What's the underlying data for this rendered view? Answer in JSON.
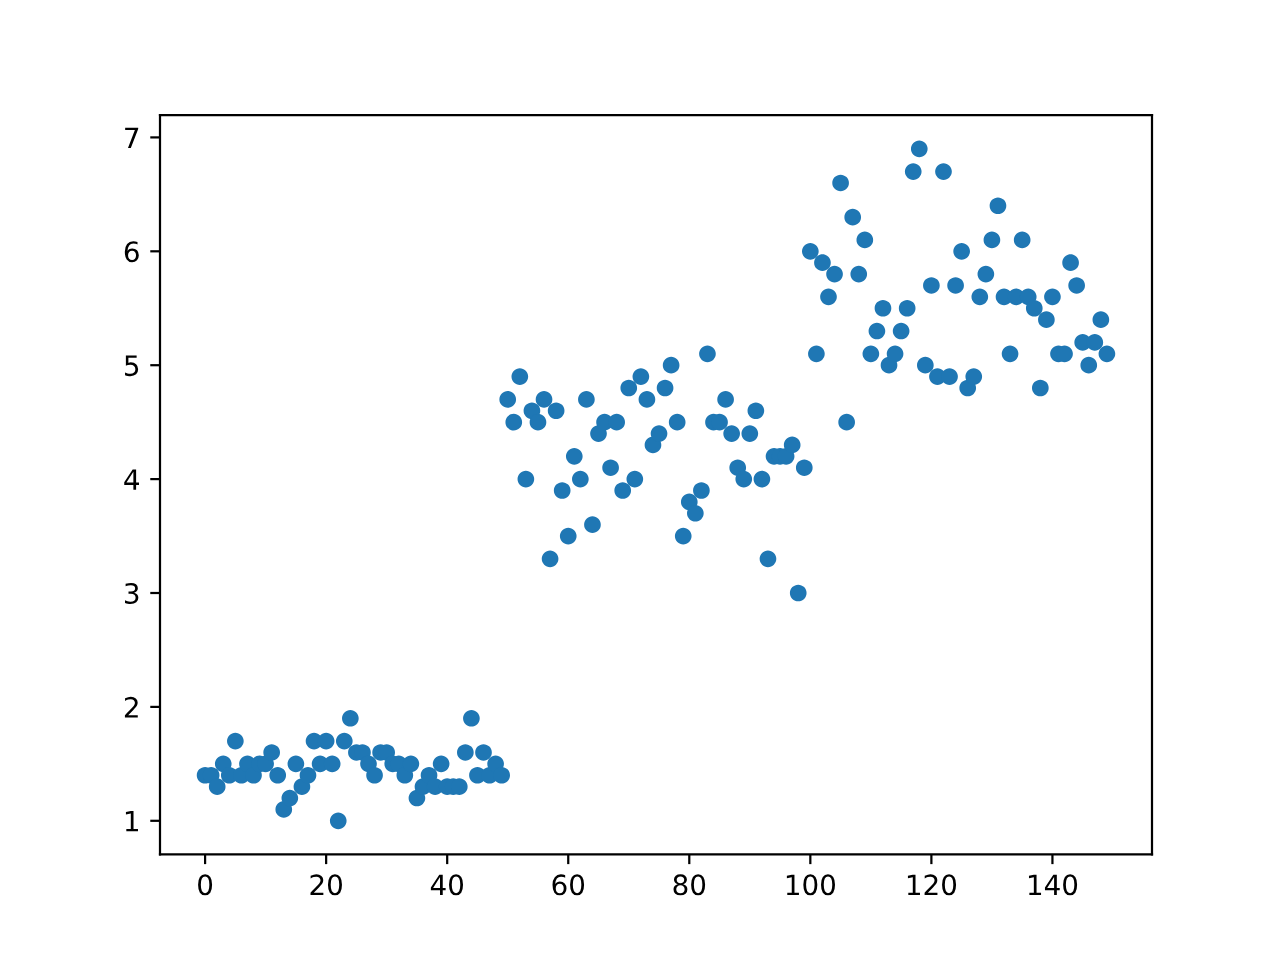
{
  "chart_data": {
    "type": "scatter",
    "x": [
      0,
      1,
      2,
      3,
      4,
      5,
      6,
      7,
      8,
      9,
      10,
      11,
      12,
      13,
      14,
      15,
      16,
      17,
      18,
      19,
      20,
      21,
      22,
      23,
      24,
      25,
      26,
      27,
      28,
      29,
      30,
      31,
      32,
      33,
      34,
      35,
      36,
      37,
      38,
      39,
      40,
      41,
      42,
      43,
      44,
      45,
      46,
      47,
      48,
      49,
      50,
      51,
      52,
      53,
      54,
      55,
      56,
      57,
      58,
      59,
      60,
      61,
      62,
      63,
      64,
      65,
      66,
      67,
      68,
      69,
      70,
      71,
      72,
      73,
      74,
      75,
      76,
      77,
      78,
      79,
      80,
      81,
      82,
      83,
      84,
      85,
      86,
      87,
      88,
      89,
      90,
      91,
      92,
      93,
      94,
      95,
      96,
      97,
      98,
      99,
      100,
      101,
      102,
      103,
      104,
      105,
      106,
      107,
      108,
      109,
      110,
      111,
      112,
      113,
      114,
      115,
      116,
      117,
      118,
      119,
      120,
      121,
      122,
      123,
      124,
      125,
      126,
      127,
      128,
      129,
      130,
      131,
      132,
      133,
      134,
      135,
      136,
      137,
      138,
      139,
      140,
      141,
      142,
      143,
      144,
      145,
      146,
      147,
      148,
      149
    ],
    "series": [
      {
        "color": "#1f77b4",
        "values": [
          1.4,
          1.4,
          1.3,
          1.5,
          1.4,
          1.7,
          1.4,
          1.5,
          1.4,
          1.5,
          1.5,
          1.6,
          1.4,
          1.1,
          1.2,
          1.5,
          1.3,
          1.4,
          1.7,
          1.5,
          1.7,
          1.5,
          1.0,
          1.7,
          1.9,
          1.6,
          1.6,
          1.5,
          1.4,
          1.6,
          1.6,
          1.5,
          1.5,
          1.4,
          1.5,
          1.2,
          1.3,
          1.4,
          1.3,
          1.5,
          1.3,
          1.3,
          1.3,
          1.6,
          1.9,
          1.4,
          1.6,
          1.4,
          1.5,
          1.4,
          4.7,
          4.5,
          4.9,
          4.0,
          4.6,
          4.5,
          4.7,
          3.3,
          4.6,
          3.9,
          3.5,
          4.2,
          4.0,
          4.7,
          3.6,
          4.4,
          4.5,
          4.1,
          4.5,
          3.9,
          4.8,
          4.0,
          4.9,
          4.7,
          4.3,
          4.4,
          4.8,
          5.0,
          4.5,
          3.5,
          3.8,
          3.7,
          3.9,
          5.1,
          4.5,
          4.5,
          4.7,
          4.4,
          4.1,
          4.0,
          4.4,
          4.6,
          4.0,
          3.3,
          4.2,
          4.2,
          4.2,
          4.3,
          3.0,
          4.1,
          6.0,
          5.1,
          5.9,
          5.6,
          5.8,
          6.6,
          4.5,
          6.3,
          5.8,
          6.1,
          5.1,
          5.3,
          5.5,
          5.0,
          5.1,
          5.3,
          5.5,
          6.7,
          6.9,
          5.0,
          5.7,
          4.9,
          6.7,
          4.9,
          5.7,
          6.0,
          4.8,
          4.9,
          5.6,
          5.8,
          6.1,
          6.4,
          5.6,
          5.1,
          5.6,
          6.1,
          5.6,
          5.5,
          4.8,
          5.4,
          5.6,
          5.1,
          5.1,
          5.9,
          5.7,
          5.2,
          5.0,
          5.2,
          5.4,
          5.1
        ]
      }
    ],
    "xlim": [
      -7.45,
      156.45
    ],
    "xticks": [
      0,
      20,
      40,
      60,
      80,
      100,
      120,
      140
    ],
    "ylim": [
      0.705,
      7.195
    ],
    "yticks": [
      1,
      2,
      3,
      4,
      5,
      6,
      7
    ],
    "marker": "circle",
    "grid": false,
    "legend": false
  }
}
